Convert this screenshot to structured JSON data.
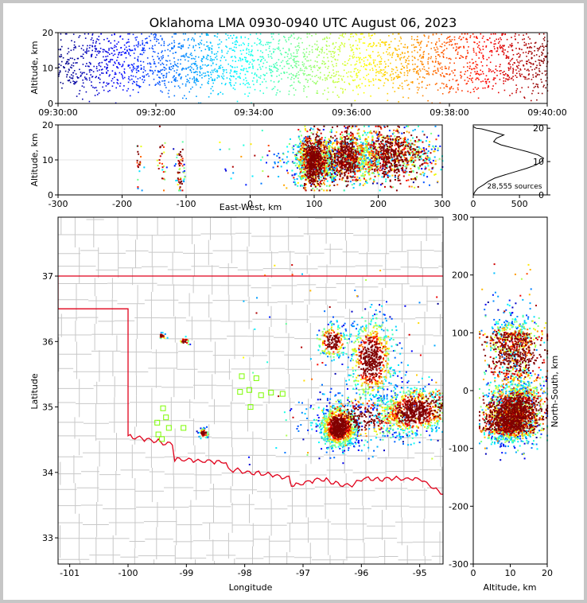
{
  "title": "Oklahoma LMA 0930-0940 UTC August 06, 2023",
  "colors": {
    "state_border": "#e0001a",
    "county_lines": "#c8c8c8",
    "station_marker": "#7cfc00",
    "histogram_line": "#000000"
  },
  "chart_data": [
    {
      "id": "time-height",
      "type": "scatter",
      "xlabel": "",
      "ylabel": "Altitude, km",
      "xticks": [
        "09:30:00",
        "09:32:00",
        "09:34:00",
        "09:36:00",
        "09:38:00",
        "09:40:00"
      ],
      "xlim_minutes": [
        0,
        10
      ],
      "ylim": [
        0,
        20
      ],
      "yticks": [
        0,
        10,
        20
      ],
      "color_scale": "jet by time"
    },
    {
      "id": "ew-height",
      "type": "scatter",
      "xlabel": "East-West, km",
      "ylabel": "Altitude, km",
      "xlim": [
        -300,
        300
      ],
      "xticks": [
        -300,
        -200,
        -100,
        0,
        100,
        200,
        300
      ],
      "ylim": [
        0,
        20
      ],
      "yticks": [
        0,
        10,
        20
      ]
    },
    {
      "id": "altitude-histogram",
      "type": "line",
      "xlim": [
        0,
        800
      ],
      "xticks": [
        0,
        500
      ],
      "ylim": [
        0,
        21
      ],
      "yticks": [
        0,
        10,
        20
      ],
      "annotation": "28,555 sources",
      "x": [
        0,
        20,
        50,
        110,
        160,
        230,
        340,
        460,
        580,
        680,
        740,
        760,
        700,
        580,
        440,
        300,
        220,
        250,
        330,
        200,
        90,
        30,
        0
      ],
      "y": [
        0,
        1,
        2,
        3,
        4,
        5,
        6,
        7,
        8,
        9,
        10,
        11,
        12,
        13,
        14,
        15,
        16,
        17,
        18,
        19,
        19.8,
        20,
        20.5
      ]
    },
    {
      "id": "plan-view",
      "type": "scatter",
      "xlabel": "Longitude",
      "ylabel": "Latitude",
      "xlim": [
        -101.2,
        -94.6
      ],
      "ylim": [
        32.6,
        37.9
      ],
      "xticks": [
        -101,
        -100,
        -99,
        -98,
        -97,
        -96,
        -95
      ],
      "yticks": [
        33,
        34,
        35,
        36,
        37
      ]
    },
    {
      "id": "ns-height",
      "type": "scatter",
      "xlabel": "Altitude, km",
      "ylabel": "North-South, km",
      "xlim": [
        0,
        20
      ],
      "xticks": [
        0,
        10,
        20
      ],
      "ylim": [
        -300,
        300
      ],
      "yticks": [
        -300,
        -200,
        -100,
        0,
        100,
        200,
        300
      ]
    }
  ],
  "stations": [
    [
      -98.05,
      35.47
    ],
    [
      -97.8,
      35.44
    ],
    [
      -98.08,
      35.23
    ],
    [
      -97.92,
      35.26
    ],
    [
      -97.72,
      35.18
    ],
    [
      -97.55,
      35.22
    ],
    [
      -97.35,
      35.2
    ],
    [
      -99.4,
      34.98
    ],
    [
      -99.35,
      34.84
    ],
    [
      -99.5,
      34.76
    ],
    [
      -99.3,
      34.68
    ],
    [
      -99.05,
      34.68
    ],
    [
      -99.48,
      34.58
    ],
    [
      -99.42,
      34.51
    ],
    [
      -97.9,
      35.0
    ]
  ]
}
